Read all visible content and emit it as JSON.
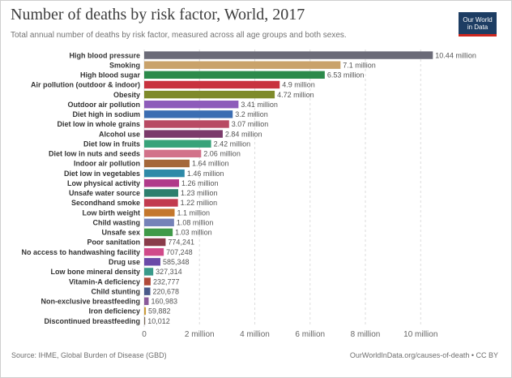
{
  "header": {
    "title": "Number of deaths by risk factor, World, 2017",
    "subtitle": "Total annual number of deaths by risk factor, measured across all age groups and both sexes.",
    "logo_line1": "Our World",
    "logo_line2": "in Data"
  },
  "footer": {
    "source": "Source: IHME, Global Burden of Disease (GBD)",
    "credit": "OurWorldInData.org/causes-of-death • CC BY"
  },
  "colors": {
    "logo_bg": "#1d3d63",
    "logo_accent": "#ce261e",
    "grid": "#dddddd"
  },
  "chart_data": {
    "type": "bar",
    "orientation": "horizontal",
    "title": "Number of deaths by risk factor, World, 2017",
    "subtitle": "Total annual number of deaths by risk factor, measured across all age groups and both sexes.",
    "xlim": [
      0,
      10.9
    ],
    "x_unit": "million deaths",
    "grid": "vertical",
    "ticks": [
      {
        "value": 0,
        "label": "0"
      },
      {
        "value": 2,
        "label": "2 million"
      },
      {
        "value": 4,
        "label": "4 million"
      },
      {
        "value": 6,
        "label": "6 million"
      },
      {
        "value": 8,
        "label": "8 million"
      },
      {
        "value": 10,
        "label": "10 million"
      }
    ],
    "bars": [
      {
        "category": "High blood pressure",
        "value": 10.44,
        "label": "10.44 million",
        "color": "#6b6b78"
      },
      {
        "category": "Smoking",
        "value": 7.1,
        "label": "7.1 million",
        "color": "#c9a26a"
      },
      {
        "category": "High blood sugar",
        "value": 6.53,
        "label": "6.53 million",
        "color": "#2c8a4b"
      },
      {
        "category": "Air pollution (outdoor & indoor)",
        "value": 4.9,
        "label": "4.9 million",
        "color": "#c8323e"
      },
      {
        "category": "Obesity",
        "value": 4.72,
        "label": "4.72 million",
        "color": "#7e8a2a"
      },
      {
        "category": "Outdoor air pollution",
        "value": 3.41,
        "label": "3.41 million",
        "color": "#8d5cba"
      },
      {
        "category": "Diet high in sodium",
        "value": 3.2,
        "label": "3.2 million",
        "color": "#3b6db2"
      },
      {
        "category": "Diet low in whole grains",
        "value": 3.07,
        "label": "3.07 million",
        "color": "#b84a63"
      },
      {
        "category": "Alcohol use",
        "value": 2.84,
        "label": "2.84 million",
        "color": "#7b3a6b"
      },
      {
        "category": "Diet low in fruits",
        "value": 2.42,
        "label": "2.42 million",
        "color": "#38a37a"
      },
      {
        "category": "Diet low in nuts and seeds",
        "value": 2.06,
        "label": "2.06 million",
        "color": "#d2728a"
      },
      {
        "category": "Indoor air pollution",
        "value": 1.64,
        "label": "1.64 million",
        "color": "#a5683a"
      },
      {
        "category": "Diet low in vegetables",
        "value": 1.46,
        "label": "1.46 million",
        "color": "#2e8aa8"
      },
      {
        "category": "Low physical activity",
        "value": 1.26,
        "label": "1.26 million",
        "color": "#b03a8a"
      },
      {
        "category": "Unsafe water source",
        "value": 1.23,
        "label": "1.23 million",
        "color": "#2d7f6e"
      },
      {
        "category": "Secondhand smoke",
        "value": 1.22,
        "label": "1.22 million",
        "color": "#c23b4f"
      },
      {
        "category": "Low birth weight",
        "value": 1.1,
        "label": "1.1 million",
        "color": "#c4772c"
      },
      {
        "category": "Child wasting",
        "value": 1.08,
        "label": "1.08 million",
        "color": "#7482b8"
      },
      {
        "category": "Unsafe sex",
        "value": 1.03,
        "label": "1.03 million",
        "color": "#3f9a48"
      },
      {
        "category": "Poor sanitation",
        "value": 0.774241,
        "label": "774,241",
        "color": "#8a3c4a"
      },
      {
        "category": "No access to handwashing facility",
        "value": 0.707248,
        "label": "707,248",
        "color": "#d04a8a"
      },
      {
        "category": "Drug use",
        "value": 0.585348,
        "label": "585,348",
        "color": "#6a4aa8"
      },
      {
        "category": "Low bone mineral density",
        "value": 0.327314,
        "label": "327,314",
        "color": "#3a9a8a"
      },
      {
        "category": "Vitamin-A deficiency",
        "value": 0.232777,
        "label": "232,777",
        "color": "#b04a3a"
      },
      {
        "category": "Child stunting",
        "value": 0.220678,
        "label": "220,678",
        "color": "#4a5a8a"
      },
      {
        "category": "Non-exclusive breastfeeding",
        "value": 0.160983,
        "label": "160,983",
        "color": "#8a5a9a"
      },
      {
        "category": "Iron deficiency",
        "value": 0.059882,
        "label": "59,882",
        "color": "#c99a3a"
      },
      {
        "category": "Discontinued breastfeeding",
        "value": 0.010012,
        "label": "10,012",
        "color": "#7a6a5a"
      }
    ]
  }
}
